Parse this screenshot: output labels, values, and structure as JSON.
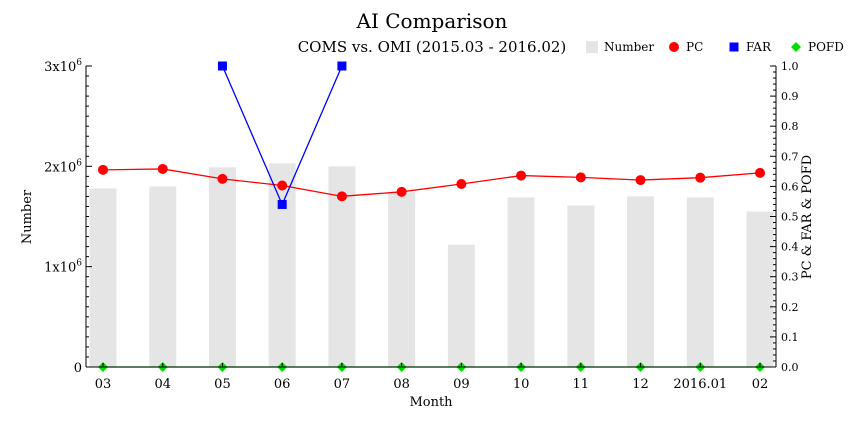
{
  "chart_data": {
    "type": "bar",
    "title": "AI Comparison",
    "subtitle": "COMS vs. OMI (2015.03 - 2016.02)",
    "xlabel": "Month",
    "ylabel_left": "Number",
    "ylabel_right": "PC & FAR & POFD",
    "categories": [
      "03",
      "04",
      "05",
      "06",
      "07",
      "08",
      "09",
      "10",
      "11",
      "12",
      "2016.01",
      "02"
    ],
    "left_ylim": [
      0,
      3000000
    ],
    "left_ticks": [
      {
        "value": 0,
        "base": "0",
        "exp": ""
      },
      {
        "value": 1000000,
        "base": "1x10",
        "exp": "6"
      },
      {
        "value": 2000000,
        "base": "2x10",
        "exp": "6"
      },
      {
        "value": 3000000,
        "base": "3x10",
        "exp": "6"
      }
    ],
    "right_ylim": [
      0,
      1.0
    ],
    "right_ticks": [
      "0.0",
      "0.1",
      "0.2",
      "0.3",
      "0.4",
      "0.5",
      "0.6",
      "0.7",
      "0.8",
      "0.9",
      "1.0"
    ],
    "legend_placement": "top-right",
    "series": [
      {
        "name": "Number",
        "kind": "bar",
        "axis": "left",
        "color": "#e5e5e5",
        "values": [
          1780000,
          1800000,
          1990000,
          2030000,
          2000000,
          1740000,
          1220000,
          1690000,
          1610000,
          1700000,
          1690000,
          1550000
        ]
      },
      {
        "name": "PC",
        "kind": "line",
        "axis": "right",
        "color": "#ff0000",
        "marker": "circle",
        "values": [
          0.655,
          0.658,
          0.625,
          0.603,
          0.567,
          0.582,
          0.608,
          0.636,
          0.63,
          0.621,
          0.629,
          0.645
        ]
      },
      {
        "name": "FAR",
        "kind": "line",
        "axis": "right",
        "color": "#0000ff",
        "marker": "square",
        "values": [
          null,
          null,
          1.0,
          0.54,
          1.0,
          null,
          null,
          null,
          null,
          null,
          null,
          null
        ]
      },
      {
        "name": "POFD",
        "kind": "line",
        "axis": "right",
        "color": "#00dd00",
        "marker": "diamond",
        "values": [
          0.0,
          0.0,
          0.0,
          0.0,
          0.0,
          0.0,
          0.0,
          0.0,
          0.0,
          0.0,
          0.0,
          0.0
        ]
      }
    ]
  }
}
